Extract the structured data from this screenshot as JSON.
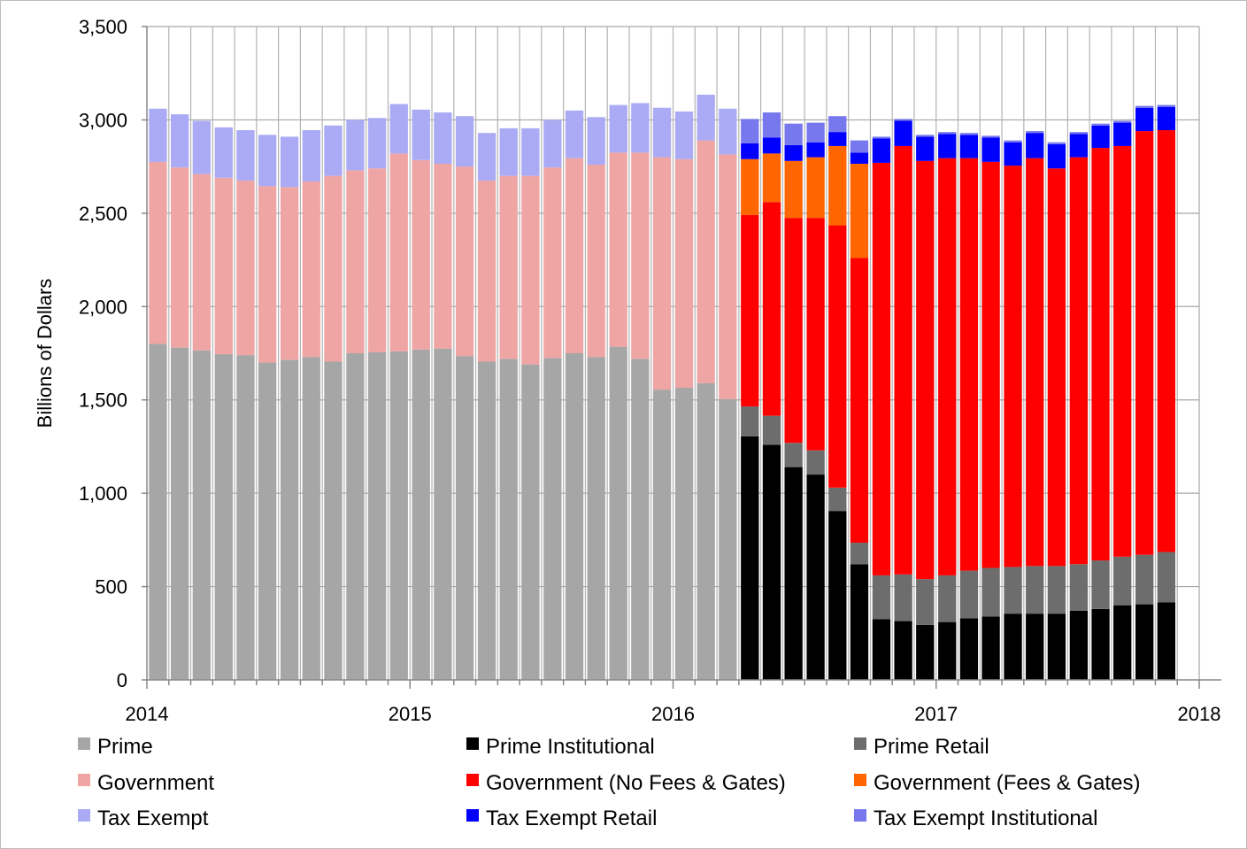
{
  "chart_data": {
    "type": "bar",
    "stacked": true,
    "title": "",
    "xlabel": "",
    "ylabel": "Billions of Dollars",
    "ylim": [
      0,
      3500
    ],
    "y_ticks": [
      "0",
      "500",
      "1,000",
      "1,500",
      "2,000",
      "2,500",
      "3,000",
      "3,500"
    ],
    "y_tick_values": [
      0,
      500,
      1000,
      1500,
      2000,
      2500,
      3000,
      3500
    ],
    "x_ticks": [
      "2014",
      "2015",
      "2016",
      "2017",
      "2018"
    ],
    "x_tick_values": [
      2014,
      2015,
      2016,
      2017,
      2018
    ],
    "x_range": [
      2014,
      2018
    ],
    "grid": true,
    "legend_position": "bottom",
    "bar_dates": [
      2014.042,
      2014.125,
      2014.208,
      2014.292,
      2014.375,
      2014.458,
      2014.542,
      2014.625,
      2014.708,
      2014.792,
      2014.875,
      2014.958,
      2015.042,
      2015.125,
      2015.208,
      2015.292,
      2015.375,
      2015.458,
      2015.542,
      2015.625,
      2015.708,
      2015.792,
      2015.875,
      2015.958,
      2016.042,
      2016.125,
      2016.208,
      2016.292,
      2016.375,
      2016.458,
      2016.542,
      2016.625,
      2016.708,
      2016.792,
      2016.875,
      2016.958,
      2017.042,
      2017.125,
      2017.208,
      2017.292,
      2017.375,
      2017.458,
      2017.542,
      2017.625,
      2017.708,
      2017.792,
      2017.875
    ],
    "series": [
      {
        "name": "Prime",
        "color": "#a6a6a6",
        "values": [
          1800,
          1780,
          1765,
          1745,
          1740,
          1700,
          1715,
          1730,
          1705,
          1750,
          1755,
          1760,
          1770,
          1775,
          1735,
          1705,
          1720,
          1690,
          1725,
          1750,
          1730,
          1785,
          1720,
          1555,
          1565,
          1590,
          1505,
          0,
          0,
          0,
          0,
          0,
          0,
          0,
          0,
          0,
          0,
          0,
          0,
          0,
          0,
          0,
          0,
          0,
          0,
          0,
          0
        ]
      },
      {
        "name": "Prime Institutional",
        "color": "#000000",
        "values": [
          0,
          0,
          0,
          0,
          0,
          0,
          0,
          0,
          0,
          0,
          0,
          0,
          0,
          0,
          0,
          0,
          0,
          0,
          0,
          0,
          0,
          0,
          0,
          0,
          0,
          0,
          0,
          1305,
          1260,
          1140,
          1100,
          905,
          620,
          325,
          315,
          295,
          310,
          330,
          340,
          355,
          355,
          355,
          370,
          380,
          400,
          405,
          415
        ]
      },
      {
        "name": "Prime Retail",
        "color": "#6d6d6d",
        "values": [
          0,
          0,
          0,
          0,
          0,
          0,
          0,
          0,
          0,
          0,
          0,
          0,
          0,
          0,
          0,
          0,
          0,
          0,
          0,
          0,
          0,
          0,
          0,
          0,
          0,
          0,
          0,
          160,
          155,
          130,
          130,
          125,
          115,
          235,
          250,
          245,
          250,
          255,
          260,
          250,
          255,
          255,
          250,
          260,
          260,
          265,
          270
        ]
      },
      {
        "name": "Government",
        "color": "#f0a5a5",
        "values": [
          975,
          965,
          945,
          945,
          935,
          945,
          925,
          940,
          995,
          980,
          985,
          1060,
          1015,
          990,
          1015,
          970,
          980,
          1010,
          1020,
          1045,
          1030,
          1040,
          1105,
          1245,
          1225,
          1300,
          1310,
          0,
          0,
          0,
          0,
          0,
          0,
          0,
          0,
          0,
          0,
          0,
          0,
          0,
          0,
          0,
          0,
          0,
          0,
          0,
          0
        ]
      },
      {
        "name": "Government (No Fees & Gates)",
        "color": "#ff0000",
        "values": [
          0,
          0,
          0,
          0,
          0,
          0,
          0,
          0,
          0,
          0,
          0,
          0,
          0,
          0,
          0,
          0,
          0,
          0,
          0,
          0,
          0,
          0,
          0,
          0,
          0,
          0,
          0,
          1025,
          1145,
          1205,
          1245,
          1405,
          1525,
          2210,
          2295,
          2240,
          2235,
          2210,
          2175,
          2150,
          2185,
          2130,
          2180,
          2210,
          2200,
          2270,
          2260
        ]
      },
      {
        "name": "Government (Fees & Gates)",
        "color": "#ff6600",
        "values": [
          0,
          0,
          0,
          0,
          0,
          0,
          0,
          0,
          0,
          0,
          0,
          0,
          0,
          0,
          0,
          0,
          0,
          0,
          0,
          0,
          0,
          0,
          0,
          0,
          0,
          0,
          0,
          300,
          260,
          305,
          325,
          425,
          505,
          0,
          0,
          0,
          0,
          0,
          0,
          0,
          0,
          0,
          0,
          0,
          0,
          0,
          0
        ]
      },
      {
        "name": "Tax Exempt",
        "color": "#aaaaf5",
        "values": [
          285,
          285,
          285,
          270,
          270,
          275,
          270,
          275,
          270,
          270,
          270,
          265,
          270,
          275,
          270,
          255,
          255,
          255,
          255,
          255,
          255,
          255,
          265,
          265,
          255,
          245,
          245,
          0,
          0,
          0,
          0,
          0,
          0,
          0,
          0,
          0,
          0,
          0,
          0,
          0,
          0,
          0,
          0,
          0,
          0,
          0,
          0
        ]
      },
      {
        "name": "Tax Exempt Retail",
        "color": "#0000ff",
        "values": [
          0,
          0,
          0,
          0,
          0,
          0,
          0,
          0,
          0,
          0,
          0,
          0,
          0,
          0,
          0,
          0,
          0,
          0,
          0,
          0,
          0,
          0,
          0,
          0,
          0,
          0,
          0,
          85,
          85,
          85,
          80,
          75,
          60,
          130,
          135,
          130,
          130,
          125,
          130,
          125,
          135,
          130,
          125,
          120,
          125,
          125,
          125
        ]
      },
      {
        "name": "Tax Exempt Institutional",
        "color": "#7777ee",
        "values": [
          0,
          0,
          0,
          0,
          0,
          0,
          0,
          0,
          0,
          0,
          0,
          0,
          0,
          0,
          0,
          0,
          0,
          0,
          0,
          0,
          0,
          0,
          0,
          0,
          0,
          0,
          0,
          130,
          135,
          115,
          105,
          85,
          65,
          10,
          10,
          10,
          10,
          10,
          10,
          10,
          10,
          10,
          10,
          10,
          10,
          10,
          10
        ]
      }
    ]
  }
}
